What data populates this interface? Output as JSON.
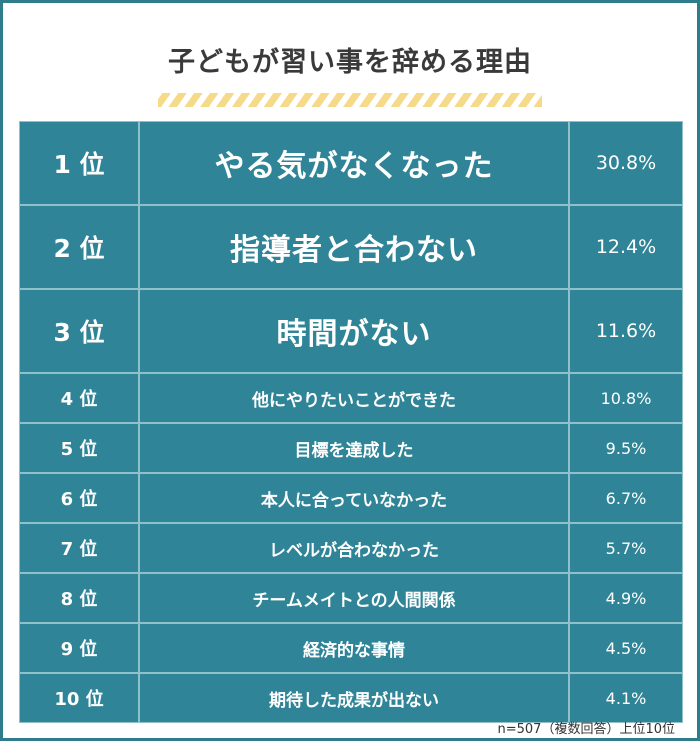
{
  "title": "子どもが習い事を辞める理由",
  "note": "n=507（複数回答）上位10位",
  "colors": {
    "frame": "#2f7d8b",
    "cell_bg": "#2f8597",
    "stripe": "#f5da8a"
  },
  "chart_data": {
    "type": "table",
    "title": "子どもが習い事を辞める理由",
    "rows": [
      {
        "rank": "1 位",
        "reason": "やる気がなくなった",
        "percent": "30.8%",
        "value": 30.8
      },
      {
        "rank": "2 位",
        "reason": "指導者と合わない",
        "percent": "12.4%",
        "value": 12.4
      },
      {
        "rank": "3 位",
        "reason": "時間がない",
        "percent": "11.6%",
        "value": 11.6
      },
      {
        "rank": "4 位",
        "reason": "他にやりたいことができた",
        "percent": "10.8%",
        "value": 10.8
      },
      {
        "rank": "5 位",
        "reason": "目標を達成した",
        "percent": "9.5%",
        "value": 9.5
      },
      {
        "rank": "6 位",
        "reason": "本人に合っていなかった",
        "percent": "6.7%",
        "value": 6.7
      },
      {
        "rank": "7 位",
        "reason": "レベルが合わなかった",
        "percent": "5.7%",
        "value": 5.7
      },
      {
        "rank": "8 位",
        "reason": "チームメイトとの人間関係",
        "percent": "4.9%",
        "value": 4.9
      },
      {
        "rank": "9 位",
        "reason": "経済的な事情",
        "percent": "4.5%",
        "value": 4.5
      },
      {
        "rank": "10 位",
        "reason": "期待した成果が出ない",
        "percent": "4.1%",
        "value": 4.1
      }
    ]
  }
}
